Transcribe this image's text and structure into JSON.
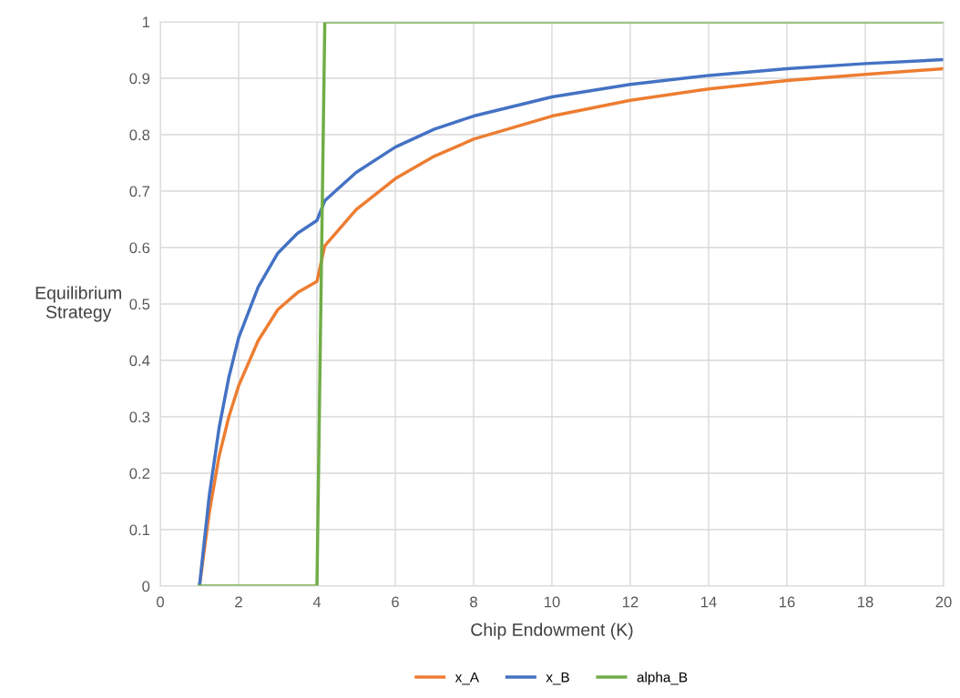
{
  "chart_data": {
    "type": "line",
    "xlabel": "Chip Endowment (K)",
    "ylabel": "Equilibrium\nStrategy",
    "series": [
      {
        "name": "x_A",
        "color": "#ed7d31",
        "x": [
          1,
          1.25,
          1.5,
          1.75,
          2,
          2.5,
          3,
          3.5,
          4,
          4.2,
          5,
          6,
          7,
          8,
          10,
          12,
          14,
          16,
          18,
          20
        ],
        "values": [
          0,
          0.13,
          0.23,
          0.3,
          0.355,
          0.435,
          0.49,
          0.52,
          0.54,
          0.603,
          0.667,
          0.722,
          0.762,
          0.792,
          0.833,
          0.861,
          0.881,
          0.896,
          0.907,
          0.917
        ]
      },
      {
        "name": "x_B",
        "color": "#4472c4",
        "x": [
          1,
          1.25,
          1.5,
          1.75,
          2,
          2.5,
          3,
          3.5,
          4,
          4.2,
          5,
          6,
          7,
          8,
          10,
          12,
          14,
          16,
          18,
          20
        ],
        "values": [
          0,
          0.16,
          0.28,
          0.37,
          0.44,
          0.53,
          0.59,
          0.625,
          0.648,
          0.683,
          0.733,
          0.778,
          0.81,
          0.833,
          0.867,
          0.889,
          0.905,
          0.917,
          0.926,
          0.933
        ]
      },
      {
        "name": "alpha_B",
        "color": "#70ad47",
        "x": [
          1,
          4,
          4.2,
          20
        ],
        "values": [
          0,
          0,
          1,
          1
        ]
      }
    ],
    "xlim": [
      0,
      20
    ],
    "xticks": [
      0,
      2,
      4,
      6,
      8,
      10,
      12,
      14,
      16,
      18,
      20
    ],
    "ylim": [
      0,
      1
    ],
    "yticks": [
      0,
      0.1,
      0.2,
      0.3,
      0.4,
      0.5,
      0.6,
      0.7,
      0.8,
      0.9,
      1
    ],
    "grid": true,
    "legend": "bottom",
    "marker": "none",
    "line_style": "solid"
  }
}
